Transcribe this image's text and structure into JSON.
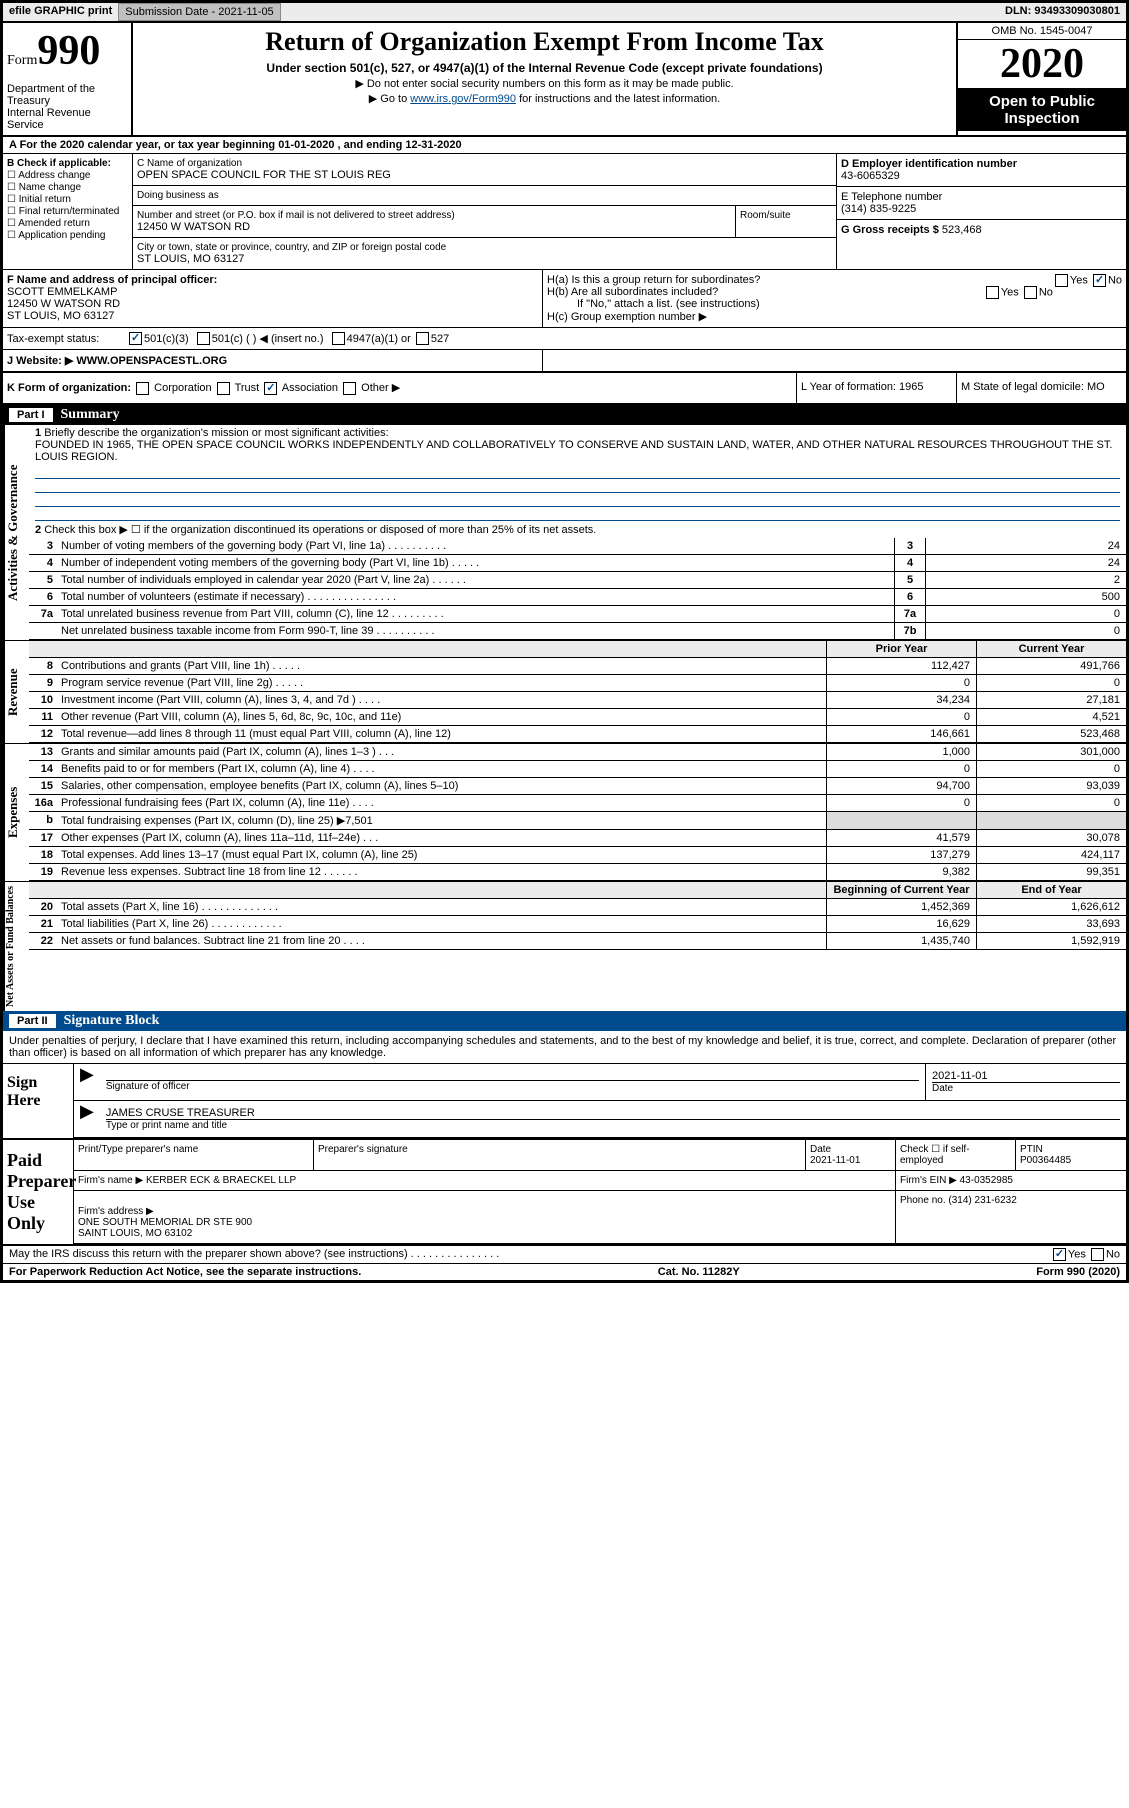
{
  "topbar": {
    "efile": "efile GRAPHIC print",
    "sub_btn": "Submission Date - 2021-11-05",
    "dln": "DLN: 93493309030801"
  },
  "header": {
    "form_word": "Form",
    "form_num": "990",
    "dept": "Department of the Treasury\nInternal Revenue Service",
    "title": "Return of Organization Exempt From Income Tax",
    "subtitle": "Under section 501(c), 527, or 4947(a)(1) of the Internal Revenue Code (except private foundations)",
    "note1": "▶ Do not enter social security numbers on this form as it may be made public.",
    "note2_pre": "▶ Go to ",
    "note2_link": "www.irs.gov/Form990",
    "note2_post": " for instructions and the latest information.",
    "omb": "OMB No. 1545-0047",
    "year": "2020",
    "open": "Open to Public\nInspection"
  },
  "period": "A For the 2020 calendar year, or tax year beginning 01-01-2020   , and ending 12-31-2020",
  "boxB": {
    "hdr": "B Check if applicable:",
    "c1": "Address change",
    "c2": "Name change",
    "c3": "Initial return",
    "c4": "Final return/terminated",
    "c5": "Amended return",
    "c6": "Application pending"
  },
  "boxC": {
    "name_lbl": "C Name of organization",
    "name_val": "OPEN SPACE COUNCIL FOR THE ST LOUIS REG",
    "dba_lbl": "Doing business as",
    "addr_lbl": "Number and street (or P.O. box if mail is not delivered to street address)",
    "addr_val": "12450 W WATSON RD",
    "room_lbl": "Room/suite",
    "city_lbl": "City or town, state or province, country, and ZIP or foreign postal code",
    "city_val": "ST LOUIS, MO  63127"
  },
  "boxD": {
    "lbl": "D Employer identification number",
    "val": "43-6065329"
  },
  "boxE": {
    "lbl": "E Telephone number",
    "val": "(314) 835-9225"
  },
  "boxG": {
    "lbl": "G Gross receipts $",
    "val": "523,468"
  },
  "boxF": {
    "lbl": "F  Name and address of principal officer:",
    "name": "SCOTT EMMELKAMP",
    "addr": "12450 W WATSON RD\nST LOUIS, MO  63127"
  },
  "boxH": {
    "ha": "H(a)  Is this a group return for subordinates?",
    "hb": "H(b)  Are all subordinates included?",
    "hb2": "If \"No,\" attach a list. (see instructions)",
    "hc": "H(c)  Group exemption number ▶",
    "yes": "Yes",
    "no": "No"
  },
  "tax": {
    "lbl": "Tax-exempt status:",
    "o1": "501(c)(3)",
    "o2": "501(c) (  ) ◀ (insert no.)",
    "o3": "4947(a)(1) or",
    "o4": "527"
  },
  "rowJ": {
    "lbl": "J   Website: ▶",
    "val": "WWW.OPENSPACESTL.ORG"
  },
  "rowK": {
    "k": "K Form of organization:",
    "o1": "Corporation",
    "o2": "Trust",
    "o3": "Association",
    "o4": "Other ▶",
    "L": "L Year of formation: 1965",
    "M": "M State of legal domicile: MO"
  },
  "part1": {
    "label": "Part I",
    "title": "Summary"
  },
  "summary": {
    "l1_lbl": "Briefly describe the organization's mission or most significant activities:",
    "l1_txt": "FOUNDED IN 1965, THE OPEN SPACE COUNCIL WORKS INDEPENDENTLY AND COLLABORATIVELY TO CONSERVE AND SUSTAIN LAND, WATER, AND OTHER NATURAL RESOURCES THROUGHOUT THE ST. LOUIS REGION.",
    "l2": "Check this box ▶ ☐  if the organization discontinued its operations or disposed of more than 25% of its net assets.",
    "lines": [
      {
        "n": "3",
        "t": "Number of voting members of the governing body (Part VI, line 1a) . . . . . . . . . .",
        "box": "3",
        "v": "24"
      },
      {
        "n": "4",
        "t": "Number of independent voting members of the governing body (Part VI, line 1b) . . . . .",
        "box": "4",
        "v": "24"
      },
      {
        "n": "5",
        "t": "Total number of individuals employed in calendar year 2020 (Part V, line 2a) . . . . . .",
        "box": "5",
        "v": "2"
      },
      {
        "n": "6",
        "t": "Total number of volunteers (estimate if necessary)  . . . . . . . . . . . . . . .",
        "box": "6",
        "v": "500"
      },
      {
        "n": "7a",
        "t": "Total unrelated business revenue from Part VIII, column (C), line 12 . . . . . . . . .",
        "box": "7a",
        "v": "0"
      },
      {
        "n": "",
        "t": "Net unrelated business taxable income from Form 990-T, line 39  . . . . . . . . . .",
        "box": "7b",
        "v": "0"
      }
    ]
  },
  "revexp": {
    "hdr_prior": "Prior Year",
    "hdr_curr": "Current Year",
    "rev_lines": [
      {
        "n": "8",
        "t": "Contributions and grants (Part VIII, line 1h) . . . . .",
        "p": "112,427",
        "c": "491,766"
      },
      {
        "n": "9",
        "t": "Program service revenue (Part VIII, line 2g) . . . . .",
        "p": "0",
        "c": "0"
      },
      {
        "n": "10",
        "t": "Investment income (Part VIII, column (A), lines 3, 4, and 7d ) . . . .",
        "p": "34,234",
        "c": "27,181"
      },
      {
        "n": "11",
        "t": "Other revenue (Part VIII, column (A), lines 5, 6d, 8c, 9c, 10c, and 11e)",
        "p": "0",
        "c": "4,521"
      },
      {
        "n": "12",
        "t": "Total revenue—add lines 8 through 11 (must equal Part VIII, column (A), line 12)",
        "p": "146,661",
        "c": "523,468"
      }
    ],
    "exp_lines": [
      {
        "n": "13",
        "t": "Grants and similar amounts paid (Part IX, column (A), lines 1–3 ) . . .",
        "p": "1,000",
        "c": "301,000"
      },
      {
        "n": "14",
        "t": "Benefits paid to or for members (Part IX, column (A), line 4) . . . .",
        "p": "0",
        "c": "0"
      },
      {
        "n": "15",
        "t": "Salaries, other compensation, employee benefits (Part IX, column (A), lines 5–10)",
        "p": "94,700",
        "c": "93,039"
      },
      {
        "n": "16a",
        "t": "Professional fundraising fees (Part IX, column (A), line 11e) . . . .",
        "p": "0",
        "c": "0"
      },
      {
        "n": "b",
        "t": "Total fundraising expenses (Part IX, column (D), line 25) ▶7,501",
        "p": "",
        "c": "",
        "shaded": true
      },
      {
        "n": "17",
        "t": "Other expenses (Part IX, column (A), lines 11a–11d, 11f–24e) . . .",
        "p": "41,579",
        "c": "30,078"
      },
      {
        "n": "18",
        "t": "Total expenses. Add lines 13–17 (must equal Part IX, column (A), line 25)",
        "p": "137,279",
        "c": "424,117"
      },
      {
        "n": "19",
        "t": "Revenue less expenses. Subtract line 18 from line 12 . . . . . .",
        "p": "9,382",
        "c": "99,351"
      }
    ],
    "na_hdr_begin": "Beginning of Current Year",
    "na_hdr_end": "End of Year",
    "na_lines": [
      {
        "n": "20",
        "t": "Total assets (Part X, line 16) . . . . . . . . . . . . .",
        "p": "1,452,369",
        "c": "1,626,612"
      },
      {
        "n": "21",
        "t": "Total liabilities (Part X, line 26) . . . . . . . . . . . .",
        "p": "16,629",
        "c": "33,693"
      },
      {
        "n": "22",
        "t": "Net assets or fund balances. Subtract line 21 from line 20 . . . .",
        "p": "1,435,740",
        "c": "1,592,919"
      }
    ]
  },
  "sidelabels": {
    "act": "Activities & Governance",
    "rev": "Revenue",
    "exp": "Expenses",
    "na": "Net Assets or Fund Balances"
  },
  "part2": {
    "label": "Part II",
    "title": "Signature Block"
  },
  "penalty": "Under penalties of perjury, I declare that I have examined this return, including accompanying schedules and statements, and to the best of my knowledge and belief, it is true, correct, and complete. Declaration of preparer (other than officer) is based on all information of which preparer has any knowledge.",
  "sign": {
    "side": "Sign Here",
    "sig_lbl": "Signature of officer",
    "date_lbl": "Date",
    "date_val": "2021-11-01",
    "name_val": "JAMES CRUSE  TREASURER",
    "name_lbl": "Type or print name and title"
  },
  "prep": {
    "side": "Paid Preparer Use Only",
    "c1": "Print/Type preparer's name",
    "c2": "Preparer's signature",
    "c3": "Date\n2021-11-01",
    "c4": "Check ☐ if self-employed",
    "c5": "PTIN\nP00364485",
    "firm_lbl": "Firm's name   ▶",
    "firm_val": "KERBER ECK & BRAECKEL LLP",
    "ein_lbl": "Firm's EIN ▶",
    "ein_val": "43-0352985",
    "addr_lbl": "Firm's address ▶",
    "addr_val": "ONE SOUTH MEMORIAL DR STE 900\nSAINT LOUIS, MO  63102",
    "phone_lbl": "Phone no.",
    "phone_val": "(314) 231-6232"
  },
  "discuss": "May the IRS discuss this return with the preparer shown above? (see instructions)  . . . . . . . . . . . . . . .",
  "foot": {
    "f1": "For Paperwork Reduction Act Notice, see the separate instructions.",
    "f2": "Cat. No. 11282Y",
    "f3": "Form 990 (2020)"
  }
}
